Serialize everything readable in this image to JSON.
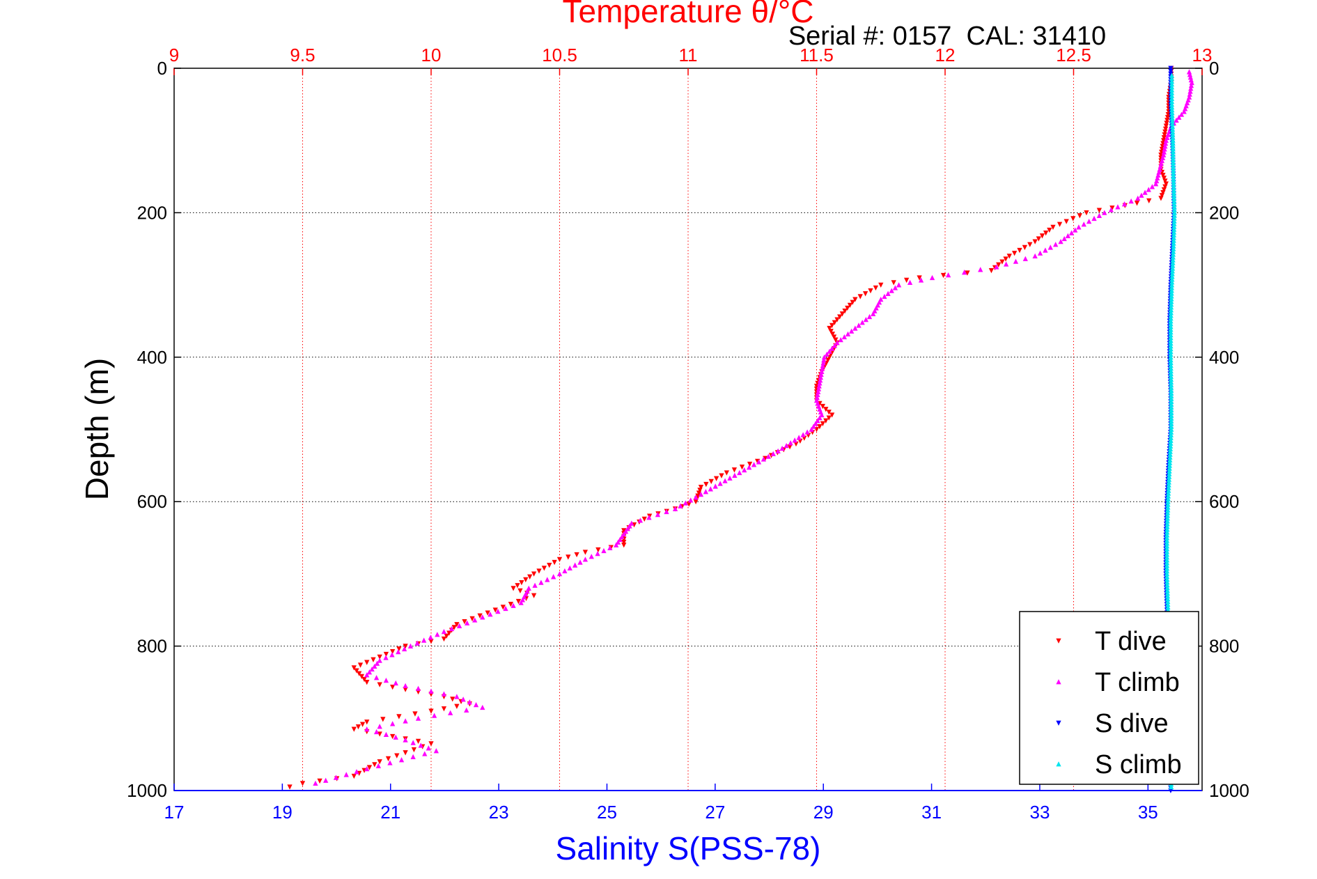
{
  "chart_data": {
    "type": "scatter",
    "top_axis": {
      "title": "Temperature θ/°C",
      "range": [
        9,
        13
      ],
      "ticks": [
        9,
        9.5,
        10,
        10.5,
        11,
        11.5,
        12,
        12.5,
        13
      ],
      "tick_labels": [
        "9",
        "9.5",
        "10",
        "10.5",
        "11",
        "11.5",
        "12",
        "12.5",
        "13"
      ],
      "color": "#ff0000"
    },
    "bottom_axis": {
      "title": "Salinity S(PSS-78)",
      "range": [
        17,
        36
      ],
      "ticks": [
        17,
        19,
        21,
        23,
        25,
        27,
        29,
        31,
        33,
        35
      ],
      "tick_labels": [
        "17",
        "19",
        "21",
        "23",
        "25",
        "27",
        "29",
        "31",
        "33",
        "35"
      ],
      "color": "#0000ff"
    },
    "y_axis": {
      "title": "Depth (m)",
      "range": [
        0,
        1000
      ],
      "reversed": true,
      "ticks": [
        0,
        200,
        400,
        600,
        800,
        1000
      ],
      "tick_labels": [
        "0",
        "200",
        "400",
        "600",
        "800",
        "1000"
      ]
    },
    "annotation": "Serial #: 0157  CAL: 31410",
    "grid": true,
    "legend_position": "bottom-right",
    "series": [
      {
        "name": "T dive",
        "axis": "temperature",
        "marker": "triangle-down",
        "color": "#ff0000",
        "points": [
          [
            12.88,
            0
          ],
          [
            12.88,
            20
          ],
          [
            12.87,
            40
          ],
          [
            12.87,
            60
          ],
          [
            12.86,
            80
          ],
          [
            12.85,
            100
          ],
          [
            12.84,
            120
          ],
          [
            12.84,
            140
          ],
          [
            12.86,
            160
          ],
          [
            12.84,
            180
          ],
          [
            12.7,
            190
          ],
          [
            12.55,
            200
          ],
          [
            12.42,
            220
          ],
          [
            12.35,
            240
          ],
          [
            12.25,
            260
          ],
          [
            12.18,
            280
          ],
          [
            11.9,
            290
          ],
          [
            11.75,
            300
          ],
          [
            11.65,
            320
          ],
          [
            11.6,
            340
          ],
          [
            11.55,
            360
          ],
          [
            11.58,
            380
          ],
          [
            11.55,
            400
          ],
          [
            11.52,
            420
          ],
          [
            11.5,
            440
          ],
          [
            11.5,
            460
          ],
          [
            11.56,
            480
          ],
          [
            11.5,
            500
          ],
          [
            11.42,
            520
          ],
          [
            11.3,
            540
          ],
          [
            11.15,
            560
          ],
          [
            11.05,
            580
          ],
          [
            11.03,
            600
          ],
          [
            10.95,
            610
          ],
          [
            10.85,
            620
          ],
          [
            10.75,
            640
          ],
          [
            10.75,
            660
          ],
          [
            10.6,
            670
          ],
          [
            10.5,
            680
          ],
          [
            10.4,
            700
          ],
          [
            10.32,
            720
          ],
          [
            10.4,
            730
          ],
          [
            10.25,
            750
          ],
          [
            10.1,
            770
          ],
          [
            10.05,
            790
          ],
          [
            9.9,
            800
          ],
          [
            9.8,
            815
          ],
          [
            9.7,
            830
          ],
          [
            9.75,
            850
          ],
          [
            9.9,
            860
          ],
          [
            10.05,
            870
          ],
          [
            10.15,
            880
          ],
          [
            10.0,
            890
          ],
          [
            9.75,
            905
          ],
          [
            9.7,
            915
          ],
          [
            9.85,
            925
          ],
          [
            10.0,
            935
          ],
          [
            9.8,
            960
          ],
          [
            9.7,
            980
          ],
          [
            9.5,
            990
          ],
          [
            9.45,
            995
          ]
        ]
      },
      {
        "name": "T climb",
        "axis": "temperature",
        "marker": "triangle-up",
        "color": "#ff00ff",
        "points": [
          [
            12.95,
            5
          ],
          [
            12.96,
            20
          ],
          [
            12.95,
            40
          ],
          [
            12.93,
            60
          ],
          [
            12.88,
            80
          ],
          [
            12.86,
            100
          ],
          [
            12.85,
            120
          ],
          [
            12.82,
            160
          ],
          [
            12.75,
            180
          ],
          [
            12.62,
            200
          ],
          [
            12.52,
            220
          ],
          [
            12.45,
            240
          ],
          [
            12.35,
            260
          ],
          [
            12.2,
            275
          ],
          [
            11.95,
            290
          ],
          [
            11.82,
            300
          ],
          [
            11.75,
            320
          ],
          [
            11.72,
            340
          ],
          [
            11.65,
            360
          ],
          [
            11.58,
            380
          ],
          [
            11.53,
            400
          ],
          [
            11.52,
            420
          ],
          [
            11.51,
            440
          ],
          [
            11.5,
            460
          ],
          [
            11.52,
            480
          ],
          [
            11.48,
            500
          ],
          [
            11.35,
            530
          ],
          [
            11.2,
            560
          ],
          [
            11.05,
            590
          ],
          [
            10.95,
            610
          ],
          [
            10.78,
            630
          ],
          [
            10.72,
            660
          ],
          [
            10.6,
            680
          ],
          [
            10.5,
            700
          ],
          [
            10.38,
            720
          ],
          [
            10.35,
            740
          ],
          [
            10.2,
            760
          ],
          [
            10.05,
            780
          ],
          [
            9.92,
            800
          ],
          [
            9.8,
            820
          ],
          [
            9.75,
            840
          ],
          [
            9.9,
            855
          ],
          [
            10.1,
            870
          ],
          [
            10.2,
            885
          ],
          [
            9.95,
            900
          ],
          [
            9.75,
            915
          ],
          [
            9.9,
            930
          ],
          [
            10.02,
            945
          ],
          [
            9.75,
            970
          ],
          [
            9.55,
            990
          ]
        ]
      },
      {
        "name": "S dive",
        "axis": "salinity",
        "marker": "triangle-down",
        "color": "#0000ff",
        "points": [
          [
            35.42,
            0
          ],
          [
            35.42,
            50
          ],
          [
            35.45,
            100
          ],
          [
            35.47,
            150
          ],
          [
            35.48,
            200
          ],
          [
            35.45,
            250
          ],
          [
            35.42,
            300
          ],
          [
            35.4,
            350
          ],
          [
            35.4,
            400
          ],
          [
            35.42,
            450
          ],
          [
            35.42,
            500
          ],
          [
            35.38,
            550
          ],
          [
            35.35,
            600
          ],
          [
            35.33,
            650
          ],
          [
            35.33,
            700
          ],
          [
            35.35,
            750
          ],
          [
            35.38,
            800
          ],
          [
            35.4,
            850
          ],
          [
            35.4,
            900
          ],
          [
            35.4,
            950
          ],
          [
            35.42,
            1000
          ]
        ]
      },
      {
        "name": "S climb",
        "axis": "salinity",
        "marker": "triangle-up",
        "color": "#00e5ee",
        "points": [
          [
            35.44,
            10
          ],
          [
            35.44,
            50
          ],
          [
            35.46,
            100
          ],
          [
            35.47,
            150
          ],
          [
            35.49,
            200
          ],
          [
            35.47,
            250
          ],
          [
            35.44,
            300
          ],
          [
            35.42,
            350
          ],
          [
            35.42,
            400
          ],
          [
            35.43,
            450
          ],
          [
            35.43,
            500
          ],
          [
            35.4,
            550
          ],
          [
            35.37,
            600
          ],
          [
            35.35,
            650
          ],
          [
            35.35,
            700
          ],
          [
            35.37,
            750
          ],
          [
            35.4,
            800
          ],
          [
            35.42,
            850
          ],
          [
            35.42,
            900
          ],
          [
            35.42,
            950
          ],
          [
            35.43,
            995
          ]
        ]
      }
    ]
  }
}
